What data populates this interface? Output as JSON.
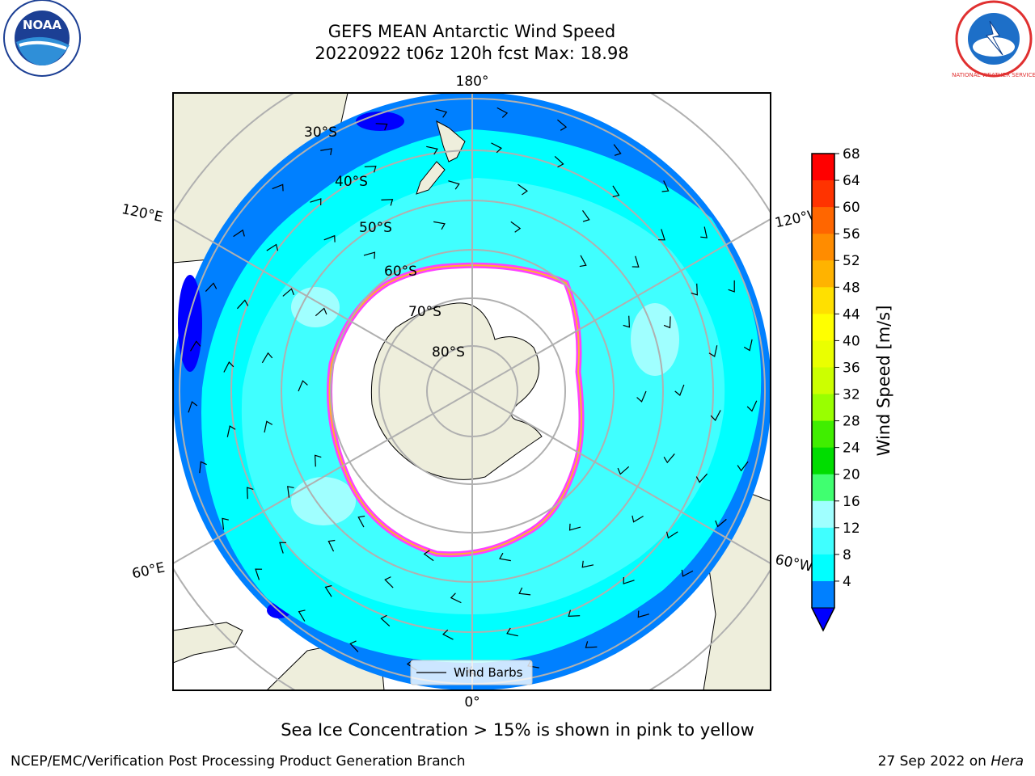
{
  "title": {
    "line1": "GEFS MEAN Antarctic Wind Speed",
    "line2": "20220922 t06z 120h fcst   Max: 18.98"
  },
  "map": {
    "lon_labels": {
      "top": "180°",
      "bottom": "0°",
      "upper_left": "120°E",
      "lower_left": "60°E",
      "upper_right": "120°W",
      "lower_right": "60°W"
    },
    "lat_labels": [
      "30°S",
      "40°S",
      "50°S",
      "60°S",
      "70°S",
      "80°S"
    ],
    "legend_label": "Wind Barbs",
    "colors": {
      "land": "#eeeedc",
      "ocean_4_8": "#0080ff",
      "ocean_8_12": "#00ffff",
      "ocean_12_16": "#40ffff",
      "ice": "#ffffff",
      "ice_edge_pink": "#ff40ff",
      "ice_edge_orange": "#ffb030"
    }
  },
  "colorbar": {
    "label": "Wind Speed [m/s]",
    "ticks": [
      "68",
      "64",
      "60",
      "56",
      "52",
      "48",
      "44",
      "40",
      "36",
      "32",
      "28",
      "24",
      "20",
      "16",
      "12",
      "8",
      "4"
    ],
    "colors_top_to_bottom": [
      "#ff0000",
      "#ff3300",
      "#ff6600",
      "#ff8c00",
      "#ffb300",
      "#ffe000",
      "#ffff00",
      "#eaff00",
      "#ccff00",
      "#99ff00",
      "#40ee00",
      "#00dd00",
      "#40ff70",
      "#a0ffff",
      "#40ffff",
      "#00ffff",
      "#0080ff"
    ],
    "extend_color": "#0000ff"
  },
  "logos": {
    "left": "NOAA",
    "right": "NATIONAL WEATHER SERVICE"
  },
  "note": "Sea Ice Concentration > 15% is shown in pink to yellow",
  "footer": {
    "left": "NCEP/EMC/Verification Post Processing Product Generation Branch",
    "right_prefix": "27 Sep 2022 on ",
    "right_italic": "Hera"
  }
}
